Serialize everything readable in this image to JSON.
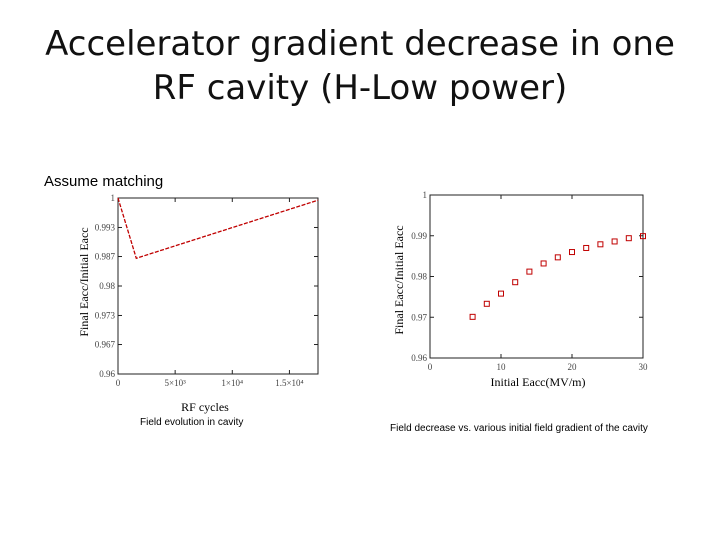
{
  "slide": {
    "title_line1": "Accelerator gradient decrease in one",
    "title_line2": "RF cavity (H-Low power)",
    "assume_text": "Assume matching",
    "caption_left": "Field evolution in cavity",
    "caption_right": "Field decrease vs. various initial field gradient of the cavity"
  },
  "chart_data": [
    {
      "type": "line",
      "xlabel": "RF cycles",
      "ylabel": "Final Eacc/Initial Eacc",
      "xlim": [
        0,
        17500
      ],
      "ylim": [
        0.96,
        1.0
      ],
      "x_ticks": [
        {
          "v": 0,
          "label": "0"
        },
        {
          "v": 5000,
          "label": "5×10³"
        },
        {
          "v": 10000,
          "label": "1×10⁴"
        },
        {
          "v": 15000,
          "label": "1.5×10⁴"
        }
      ],
      "y_ticks": [
        {
          "v": 1.0,
          "label": "1"
        },
        {
          "v": 0.9933,
          "label": "0.993"
        },
        {
          "v": 0.9867,
          "label": "0.987"
        },
        {
          "v": 0.98,
          "label": "0.98"
        },
        {
          "v": 0.9733,
          "label": "0.973"
        },
        {
          "v": 0.9667,
          "label": "0.967"
        },
        {
          "v": 0.96,
          "label": "0.96"
        }
      ],
      "series": [
        {
          "x": [
            0,
            1600,
            17500
          ],
          "y": [
            1.0,
            0.9863,
            0.9995
          ],
          "color": "#c00000",
          "dash": true
        }
      ],
      "grid": false
    },
    {
      "type": "scatter",
      "xlabel": "Initial Eacc(MV/m)",
      "ylabel": "Final Eacc/Initial Eacc",
      "xlim": [
        0,
        30
      ],
      "ylim": [
        0.96,
        1.0
      ],
      "x_ticks": [
        {
          "v": 0,
          "label": "0"
        },
        {
          "v": 10,
          "label": "10"
        },
        {
          "v": 20,
          "label": "20"
        },
        {
          "v": 30,
          "label": "30"
        }
      ],
      "y_ticks": [
        {
          "v": 1.0,
          "label": "1"
        },
        {
          "v": 0.99,
          "label": "0.99"
        },
        {
          "v": 0.98,
          "label": "0.98"
        },
        {
          "v": 0.97,
          "label": "0.97"
        },
        {
          "v": 0.96,
          "label": "0.96"
        }
      ],
      "series": [
        {
          "x": [
            6,
            8,
            10,
            12,
            14,
            16,
            18,
            20,
            22,
            24,
            26,
            28,
            30
          ],
          "y": [
            0.9701,
            0.9733,
            0.9758,
            0.9786,
            0.9812,
            0.9832,
            0.9847,
            0.986,
            0.987,
            0.9879,
            0.9886,
            0.9894,
            0.9899
          ],
          "color": "#c00000",
          "marker": "square-open"
        }
      ],
      "grid": false
    }
  ]
}
